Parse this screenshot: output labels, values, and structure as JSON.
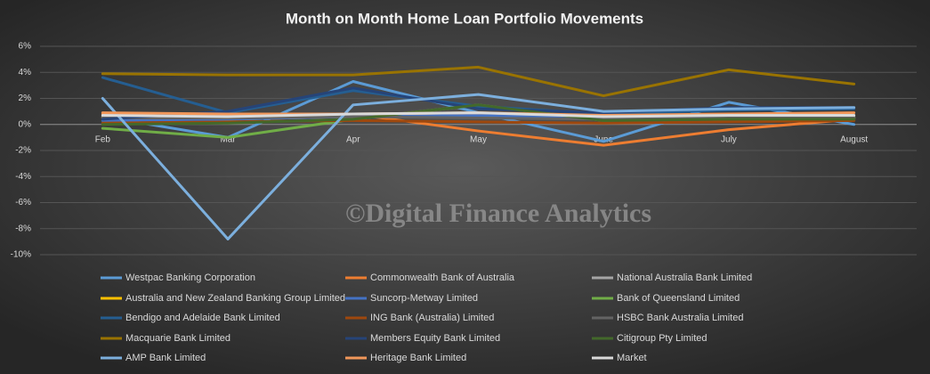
{
  "chart_data": {
    "type": "line",
    "title": "Month on Month Home Loan Portfolio Movements",
    "watermark": "©Digital Finance Analytics",
    "categories": [
      "Feb",
      "Mar",
      "Apr",
      "May",
      "June",
      "July",
      "August"
    ],
    "ylim": [
      -10,
      6
    ],
    "yticks": [
      {
        "value": -10,
        "label": "-10%"
      },
      {
        "value": -8,
        "label": "-8%"
      },
      {
        "value": -6,
        "label": "-6%"
      },
      {
        "value": -4,
        "label": "-4%"
      },
      {
        "value": -2,
        "label": "-2%"
      },
      {
        "value": 0,
        "label": "0%"
      },
      {
        "value": 2,
        "label": "2%"
      },
      {
        "value": 4,
        "label": "4%"
      },
      {
        "value": 6,
        "label": "6%"
      }
    ],
    "grid": true,
    "legend": "bottom",
    "series": [
      {
        "name": "Westpac Banking Corporation",
        "color": "#5b9bd5",
        "values": [
          0.6,
          -1.0,
          3.3,
          0.9,
          -1.3,
          1.7,
          0.0
        ]
      },
      {
        "name": "Commonwealth Bank of Australia",
        "color": "#ed7d31",
        "values": [
          0.8,
          0.7,
          0.8,
          -0.5,
          -1.6,
          -0.4,
          0.4
        ]
      },
      {
        "name": "National Australia Bank Limited",
        "color": "#a5a5a5",
        "values": [
          0.6,
          0.5,
          0.7,
          0.8,
          0.5,
          0.6,
          0.6
        ]
      },
      {
        "name": "Australia and New Zealand Banking Group Limited",
        "color": "#ffc000",
        "values": [
          0.5,
          0.4,
          0.6,
          0.6,
          0.4,
          0.5,
          0.5
        ]
      },
      {
        "name": "Suncorp-Metway Limited",
        "color": "#4472c4",
        "values": [
          0.3,
          0.4,
          0.6,
          0.7,
          0.5,
          0.6,
          0.5
        ]
      },
      {
        "name": "Bank of Queensland Limited",
        "color": "#70ad47",
        "values": [
          -0.3,
          -1.0,
          0.4,
          1.5,
          0.3,
          0.5,
          0.5
        ]
      },
      {
        "name": "Bendigo and Adelaide Bank Limited",
        "color": "#255e91",
        "values": [
          3.6,
          0.9,
          2.6,
          1.4,
          0.8,
          1.1,
          1.2
        ]
      },
      {
        "name": "ING Bank (Australia) Limited",
        "color": "#9e480e",
        "values": [
          0.1,
          0.2,
          0.3,
          0.2,
          0.1,
          0.2,
          0.3
        ]
      },
      {
        "name": "HSBC Bank Australia Limited",
        "color": "#636363",
        "values": [
          0.5,
          0.5,
          0.6,
          0.5,
          0.4,
          0.5,
          0.5
        ]
      },
      {
        "name": "Macquarie Bank Limited",
        "color": "#997300",
        "values": [
          3.9,
          3.8,
          3.8,
          4.4,
          2.2,
          4.2,
          3.1
        ]
      },
      {
        "name": "Members Equity Bank Limited",
        "color": "#264478",
        "values": [
          0.4,
          1.0,
          2.8,
          1.2,
          0.9,
          1.3,
          1.3
        ]
      },
      {
        "name": "Citigroup Pty Limited",
        "color": "#43682b",
        "values": [
          0.0,
          0.1,
          0.4,
          1.5,
          0.3,
          0.4,
          0.4
        ]
      },
      {
        "name": "AMP Bank Limited",
        "color": "#7cafdd",
        "values": [
          2.0,
          -8.8,
          1.5,
          2.3,
          1.0,
          1.2,
          1.3
        ]
      },
      {
        "name": "Heritage Bank Limited",
        "color": "#f1975a",
        "values": [
          0.9,
          0.8,
          0.8,
          0.9,
          0.7,
          0.8,
          0.9
        ]
      },
      {
        "name": "Market",
        "color": "#d9d9d9",
        "values": [
          0.7,
          0.6,
          0.8,
          0.9,
          0.6,
          0.7,
          0.7
        ]
      }
    ]
  }
}
